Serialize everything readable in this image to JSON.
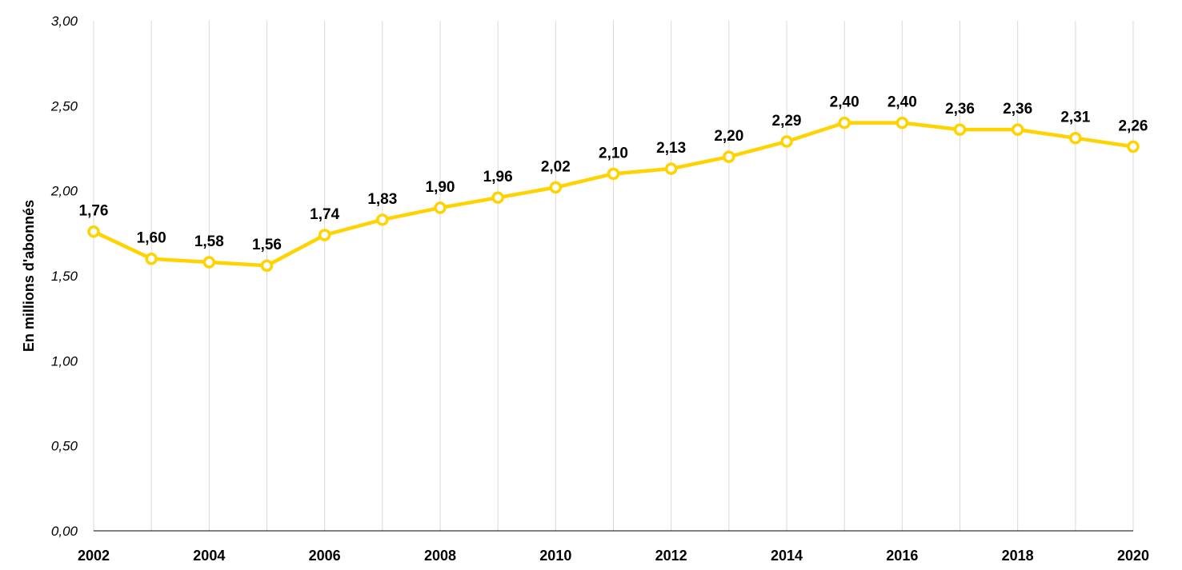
{
  "chart_data": {
    "type": "line",
    "title": "",
    "xlabel": "",
    "ylabel": "En millions d'abonnés",
    "x": [
      2002,
      2003,
      2004,
      2005,
      2006,
      2007,
      2008,
      2009,
      2010,
      2011,
      2012,
      2013,
      2014,
      2015,
      2016,
      2017,
      2018,
      2019,
      2020
    ],
    "x_tick_labels": [
      "2002",
      "2004",
      "2006",
      "2008",
      "2010",
      "2012",
      "2014",
      "2016",
      "2018",
      "2020"
    ],
    "series": [
      {
        "values": [
          1.76,
          1.6,
          1.58,
          1.56,
          1.74,
          1.83,
          1.9,
          1.96,
          2.02,
          2.1,
          2.13,
          2.2,
          2.29,
          2.4,
          2.4,
          2.36,
          2.36,
          2.31,
          2.26
        ],
        "data_labels": [
          "1,76",
          "1,60",
          "1,58",
          "1,56",
          "1,74",
          "1,83",
          "1,90",
          "1,96",
          "2,02",
          "2,10",
          "2,13",
          "2,20",
          "2,29",
          "2,40",
          "2,40",
          "2,36",
          "2,36",
          "2,31",
          "2,26"
        ],
        "color": "#FFD200"
      }
    ],
    "ylim": [
      0,
      3
    ],
    "y_ticks": [
      0,
      0.5,
      1,
      1.5,
      2,
      2.5,
      3
    ],
    "y_tick_labels": [
      "0,00",
      "0,50",
      "1,00",
      "1,50",
      "2,00",
      "2,50",
      "3,00"
    ],
    "grid": "vertical",
    "grid_color": "#D9D9D9",
    "axis_color": "#000000",
    "legend": "none"
  }
}
